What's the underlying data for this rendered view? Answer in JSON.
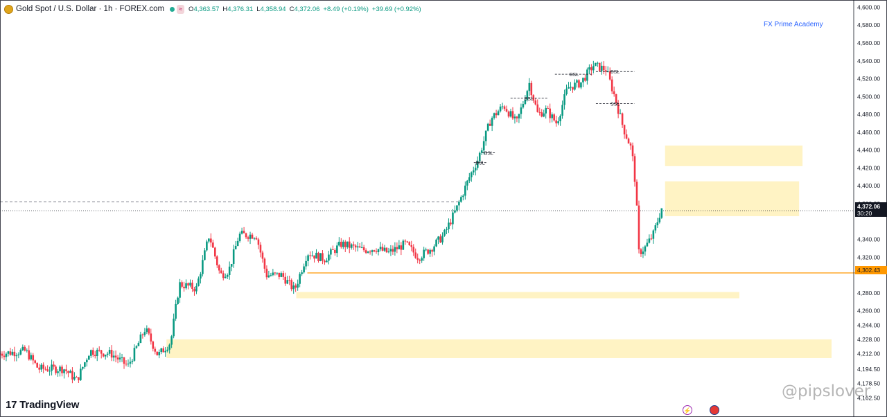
{
  "header": {
    "symbol_title": "Gold Spot / U.S. Dollar · 1h · FOREX.com",
    "badge": "≈",
    "open_key": "O",
    "open": "4,363.57",
    "high_key": "H",
    "high": "4,376.31",
    "low_key": "L",
    "low": "4,358.94",
    "close_key": "C",
    "close": "4,372.06",
    "change": "+8.49 (+0.19%)",
    "change2": "+39.69 (+0.92%)"
  },
  "brand_label": "FX Prime Academy",
  "tradingview_logo": "TradingView",
  "tradingview_mark": "17",
  "watermark": "@pipslover",
  "price_tags": {
    "current_price": "4,372.06",
    "countdown": "30:20",
    "level": "4,302.43"
  },
  "colors": {
    "up": "#089981",
    "down": "#f23645",
    "zone": "#fff3c4",
    "level_line": "#ff9800",
    "brand": "#2962ff"
  },
  "chart_data": {
    "type": "candlestick",
    "symbol": "Gold Spot / U.S. Dollar",
    "timeframe": "1h",
    "y_axis": {
      "side": "right",
      "ylim": [
        4155,
        4605
      ],
      "ticks": [
        "4,600.00",
        "4,580.00",
        "4,560.00",
        "4,540.00",
        "4,520.00",
        "4,500.00",
        "4,480.00",
        "4,460.00",
        "4,440.00",
        "4,420.00",
        "4,400.00",
        "4,380.00",
        "4,340.00",
        "4,320.00",
        "4,280.00",
        "4,260.00",
        "4,244.00",
        "4,228.00",
        "4,212.00",
        "4,194.50",
        "4,178.50",
        "4,162.50"
      ]
    },
    "horizontal_levels": [
      {
        "name": "support",
        "value": 4302.43,
        "style": "solid",
        "color": "#ff9800"
      },
      {
        "name": "reference",
        "value": 4382,
        "style": "dashed",
        "color": "#787b86"
      }
    ],
    "zones": [
      {
        "label": "",
        "x_start_frac": 0.779,
        "x_end_frac": 0.94,
        "low": 4422,
        "high": 4445
      },
      {
        "label": "",
        "x_start_frac": 0.779,
        "x_end_frac": 0.936,
        "low": 4366,
        "high": 4405
      },
      {
        "label": "",
        "x_start_frac": 0.347,
        "x_end_frac": 0.866,
        "low": 4274,
        "high": 4281
      },
      {
        "label": "",
        "x_start_frac": 0.195,
        "x_end_frac": 0.974,
        "low": 4207,
        "high": 4228
      }
    ],
    "annotations": [
      {
        "text": "BSL",
        "value": 4437,
        "x_start_frac": 0.565,
        "x_end_frac": 0.58
      },
      {
        "text": "BSL",
        "value": 4426,
        "x_start_frac": 0.555,
        "x_end_frac": 0.57
      },
      {
        "text": "BSL",
        "value": 4498,
        "x_start_frac": 0.598,
        "x_end_frac": 0.641
      },
      {
        "text": "BSL",
        "value": 4525,
        "x_start_frac": 0.65,
        "x_end_frac": 0.695
      },
      {
        "text": "BSL",
        "value": 4528,
        "x_start_frac": 0.698,
        "x_end_frac": 0.743
      },
      {
        "text": "SSL",
        "value": 4492,
        "x_start_frac": 0.698,
        "x_end_frac": 0.743
      }
    ],
    "path_anchors": [
      [
        0.0,
        4212
      ],
      [
        0.03,
        4215
      ],
      [
        0.045,
        4195
      ],
      [
        0.075,
        4195
      ],
      [
        0.09,
        4182
      ],
      [
        0.105,
        4215
      ],
      [
        0.13,
        4212
      ],
      [
        0.15,
        4198
      ],
      [
        0.17,
        4240
      ],
      [
        0.185,
        4210
      ],
      [
        0.2,
        4225
      ],
      [
        0.21,
        4290
      ],
      [
        0.23,
        4285
      ],
      [
        0.245,
        4345
      ],
      [
        0.258,
        4300
      ],
      [
        0.268,
        4305
      ],
      [
        0.28,
        4345
      ],
      [
        0.3,
        4345
      ],
      [
        0.312,
        4300
      ],
      [
        0.33,
        4300
      ],
      [
        0.345,
        4283
      ],
      [
        0.36,
        4325
      ],
      [
        0.38,
        4318
      ],
      [
        0.4,
        4335
      ],
      [
        0.425,
        4328
      ],
      [
        0.44,
        4330
      ],
      [
        0.455,
        4325
      ],
      [
        0.475,
        4335
      ],
      [
        0.49,
        4320
      ],
      [
        0.505,
        4330
      ],
      [
        0.52,
        4345
      ],
      [
        0.535,
        4375
      ],
      [
        0.55,
        4410
      ],
      [
        0.56,
        4430
      ],
      [
        0.575,
        4475
      ],
      [
        0.59,
        4490
      ],
      [
        0.605,
        4470
      ],
      [
        0.62,
        4515
      ],
      [
        0.63,
        4480
      ],
      [
        0.64,
        4485
      ],
      [
        0.652,
        4470
      ],
      [
        0.665,
        4510
      ],
      [
        0.68,
        4515
      ],
      [
        0.695,
        4535
      ],
      [
        0.71,
        4530
      ],
      [
        0.72,
        4500
      ],
      [
        0.73,
        4465
      ],
      [
        0.74,
        4440
      ],
      [
        0.745,
        4395
      ],
      [
        0.748,
        4325
      ],
      [
        0.755,
        4330
      ],
      [
        0.765,
        4345
      ],
      [
        0.775,
        4375
      ]
    ]
  }
}
